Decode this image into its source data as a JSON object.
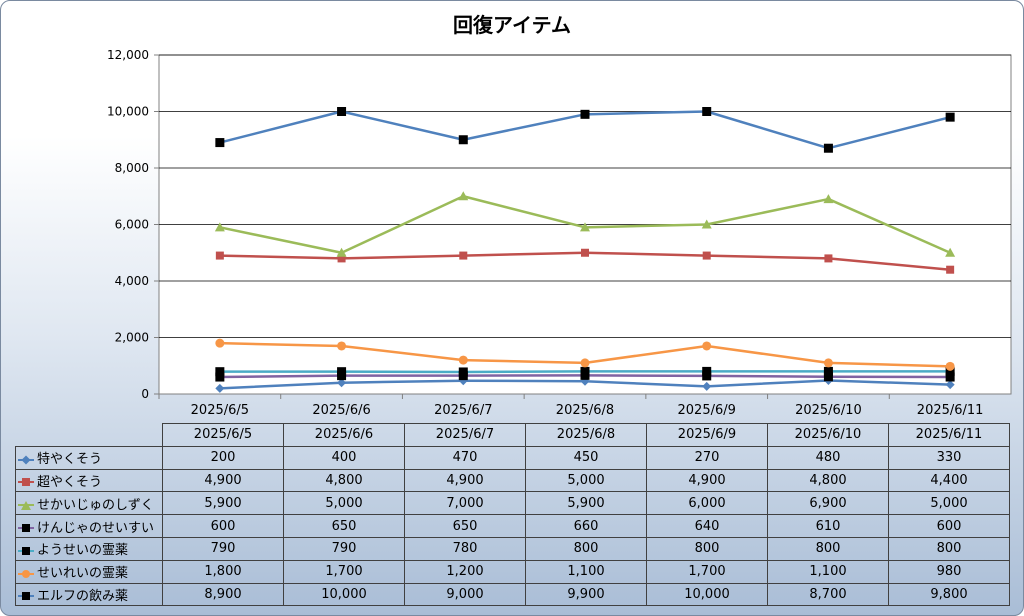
{
  "chart_data": {
    "type": "line",
    "title": "回復アイテム",
    "categories": [
      "2025/6/5",
      "2025/6/6",
      "2025/6/7",
      "2025/6/8",
      "2025/6/9",
      "2025/6/10",
      "2025/6/11"
    ],
    "ylim": [
      0,
      12000
    ],
    "yticks": [
      "0",
      "2,000",
      "4,000",
      "6,000",
      "8,000",
      "10,000",
      "12,000"
    ],
    "grid": true,
    "legend_placement": "data-table",
    "series": [
      {
        "name": "特やくそう",
        "color": "#4f81bd",
        "marker": "diamond",
        "values": [
          200,
          400,
          470,
          450,
          270,
          480,
          330
        ],
        "labels": [
          "200",
          "400",
          "470",
          "450",
          "270",
          "480",
          "330"
        ]
      },
      {
        "name": "超やくそう",
        "color": "#c0504d",
        "marker": "square",
        "values": [
          4900,
          4800,
          4900,
          5000,
          4900,
          4800,
          4400
        ],
        "labels": [
          "4,900",
          "4,800",
          "4,900",
          "5,000",
          "4,900",
          "4,800",
          "4,400"
        ]
      },
      {
        "name": "せかいじゅのしずく",
        "color": "#9bbb59",
        "marker": "triangle",
        "values": [
          5900,
          5000,
          7000,
          5900,
          6000,
          6900,
          5000
        ],
        "labels": [
          "5,900",
          "5,000",
          "7,000",
          "5,900",
          "6,000",
          "6,900",
          "5,000"
        ]
      },
      {
        "name": "けんじゃのせいすい",
        "color": "#8064a2",
        "marker": "blacksquare",
        "values": [
          600,
          650,
          650,
          660,
          640,
          610,
          600
        ],
        "labels": [
          "600",
          "650",
          "650",
          "660",
          "640",
          "610",
          "600"
        ]
      },
      {
        "name": "ようせいの霊薬",
        "color": "#4bacc6",
        "marker": "blacksquare",
        "values": [
          790,
          790,
          780,
          800,
          800,
          800,
          800
        ],
        "labels": [
          "790",
          "790",
          "780",
          "800",
          "800",
          "800",
          "800"
        ]
      },
      {
        "name": "せいれいの霊薬",
        "color": "#f79646",
        "marker": "circle",
        "values": [
          1800,
          1700,
          1200,
          1100,
          1700,
          1100,
          980
        ],
        "labels": [
          "1,800",
          "1,700",
          "1,200",
          "1,100",
          "1,700",
          "1,100",
          "980"
        ]
      },
      {
        "name": "エルフの飲み薬",
        "color": "#4f81bd",
        "marker": "blacksquare",
        "values": [
          8900,
          10000,
          9000,
          9900,
          10000,
          8700,
          9800
        ],
        "labels": [
          "8,900",
          "10,000",
          "9,000",
          "9,900",
          "10,000",
          "8,700",
          "9,800"
        ]
      }
    ]
  }
}
